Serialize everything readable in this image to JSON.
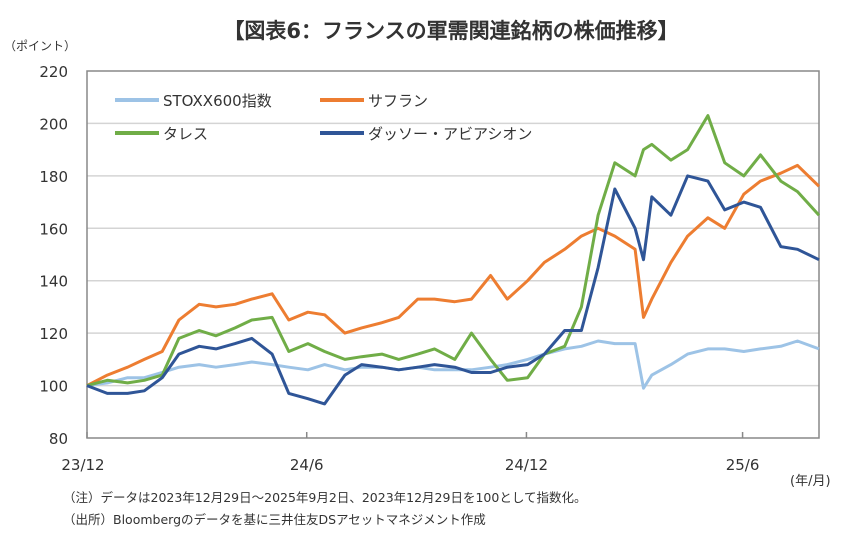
{
  "chart_data": {
    "type": "line",
    "title": "【図表6：フランスの軍需関連銘柄の株価推移】",
    "ylabel": "（ポイント）",
    "xlabel": "(年/月)",
    "ylim": [
      80,
      220
    ],
    "yticks": [
      80,
      100,
      120,
      140,
      160,
      180,
      200,
      220
    ],
    "xlim": [
      "2023-12-29",
      "2025-09-02"
    ],
    "xticks": [
      {
        "label": "23/12",
        "date": "2023-12-29"
      },
      {
        "label": "24/6",
        "date": "2024-06-30"
      },
      {
        "label": "24/12",
        "date": "2024-12-31"
      },
      {
        "label": "25/6",
        "date": "2025-06-30"
      }
    ],
    "grid": true,
    "legend": "top-left",
    "x": [
      "2023-12-29",
      "2024-01-15",
      "2024-02-01",
      "2024-02-15",
      "2024-03-01",
      "2024-03-15",
      "2024-04-01",
      "2024-04-15",
      "2024-05-01",
      "2024-05-15",
      "2024-06-01",
      "2024-06-15",
      "2024-07-01",
      "2024-07-15",
      "2024-08-01",
      "2024-08-15",
      "2024-09-01",
      "2024-09-15",
      "2024-10-01",
      "2024-10-15",
      "2024-11-01",
      "2024-11-15",
      "2024-12-01",
      "2024-12-15",
      "2025-01-01",
      "2025-01-15",
      "2025-02-01",
      "2025-02-15",
      "2025-03-01",
      "2025-03-15",
      "2025-04-01",
      "2025-04-08",
      "2025-04-15",
      "2025-05-01",
      "2025-05-15",
      "2025-06-01",
      "2025-06-15",
      "2025-07-01",
      "2025-07-15",
      "2025-08-01",
      "2025-08-15",
      "2025-09-02"
    ],
    "series": [
      {
        "name": "STOXX600指数",
        "color": "#9DC3E6",
        "values": [
          100,
          101,
          103,
          103,
          105,
          107,
          108,
          107,
          108,
          109,
          108,
          107,
          106,
          108,
          106,
          107,
          107,
          106,
          107,
          106,
          106,
          106,
          107,
          108,
          110,
          112,
          114,
          115,
          117,
          116,
          116,
          99,
          104,
          108,
          112,
          114,
          114,
          113,
          114,
          115,
          117,
          114
        ]
      },
      {
        "name": "サフラン",
        "color": "#ED7D31",
        "values": [
          100,
          104,
          107,
          110,
          113,
          125,
          131,
          130,
          131,
          133,
          135,
          125,
          128,
          127,
          120,
          122,
          124,
          126,
          133,
          133,
          132,
          133,
          142,
          133,
          140,
          147,
          152,
          157,
          160,
          157,
          152,
          126,
          133,
          147,
          157,
          164,
          160,
          173,
          178,
          181,
          184,
          176
        ]
      },
      {
        "name": "タレス",
        "color": "#70AD47",
        "values": [
          100,
          102,
          101,
          102,
          104,
          118,
          121,
          119,
          122,
          125,
          126,
          113,
          116,
          113,
          110,
          111,
          112,
          110,
          112,
          114,
          110,
          120,
          110,
          102,
          103,
          112,
          115,
          130,
          165,
          185,
          180,
          190,
          192,
          186,
          190,
          203,
          185,
          180,
          188,
          178,
          174,
          165
        ]
      },
      {
        "name": "ダッソー・アビアシオン",
        "color": "#2F5597",
        "values": [
          100,
          97,
          97,
          98,
          103,
          112,
          115,
          114,
          116,
          118,
          112,
          97,
          95,
          93,
          104,
          108,
          107,
          106,
          107,
          108,
          107,
          105,
          105,
          107,
          108,
          112,
          121,
          121,
          145,
          175,
          160,
          148,
          172,
          165,
          180,
          178,
          167,
          170,
          168,
          153,
          152,
          148
        ]
      }
    ]
  },
  "notes": [
    "（注）データは2023年12月29日～2025年9月2日、2023年12月29日を100として指数化。",
    "（出所）Bloombergのデータを基に三井住友DSアセットマネジメント作成"
  ]
}
